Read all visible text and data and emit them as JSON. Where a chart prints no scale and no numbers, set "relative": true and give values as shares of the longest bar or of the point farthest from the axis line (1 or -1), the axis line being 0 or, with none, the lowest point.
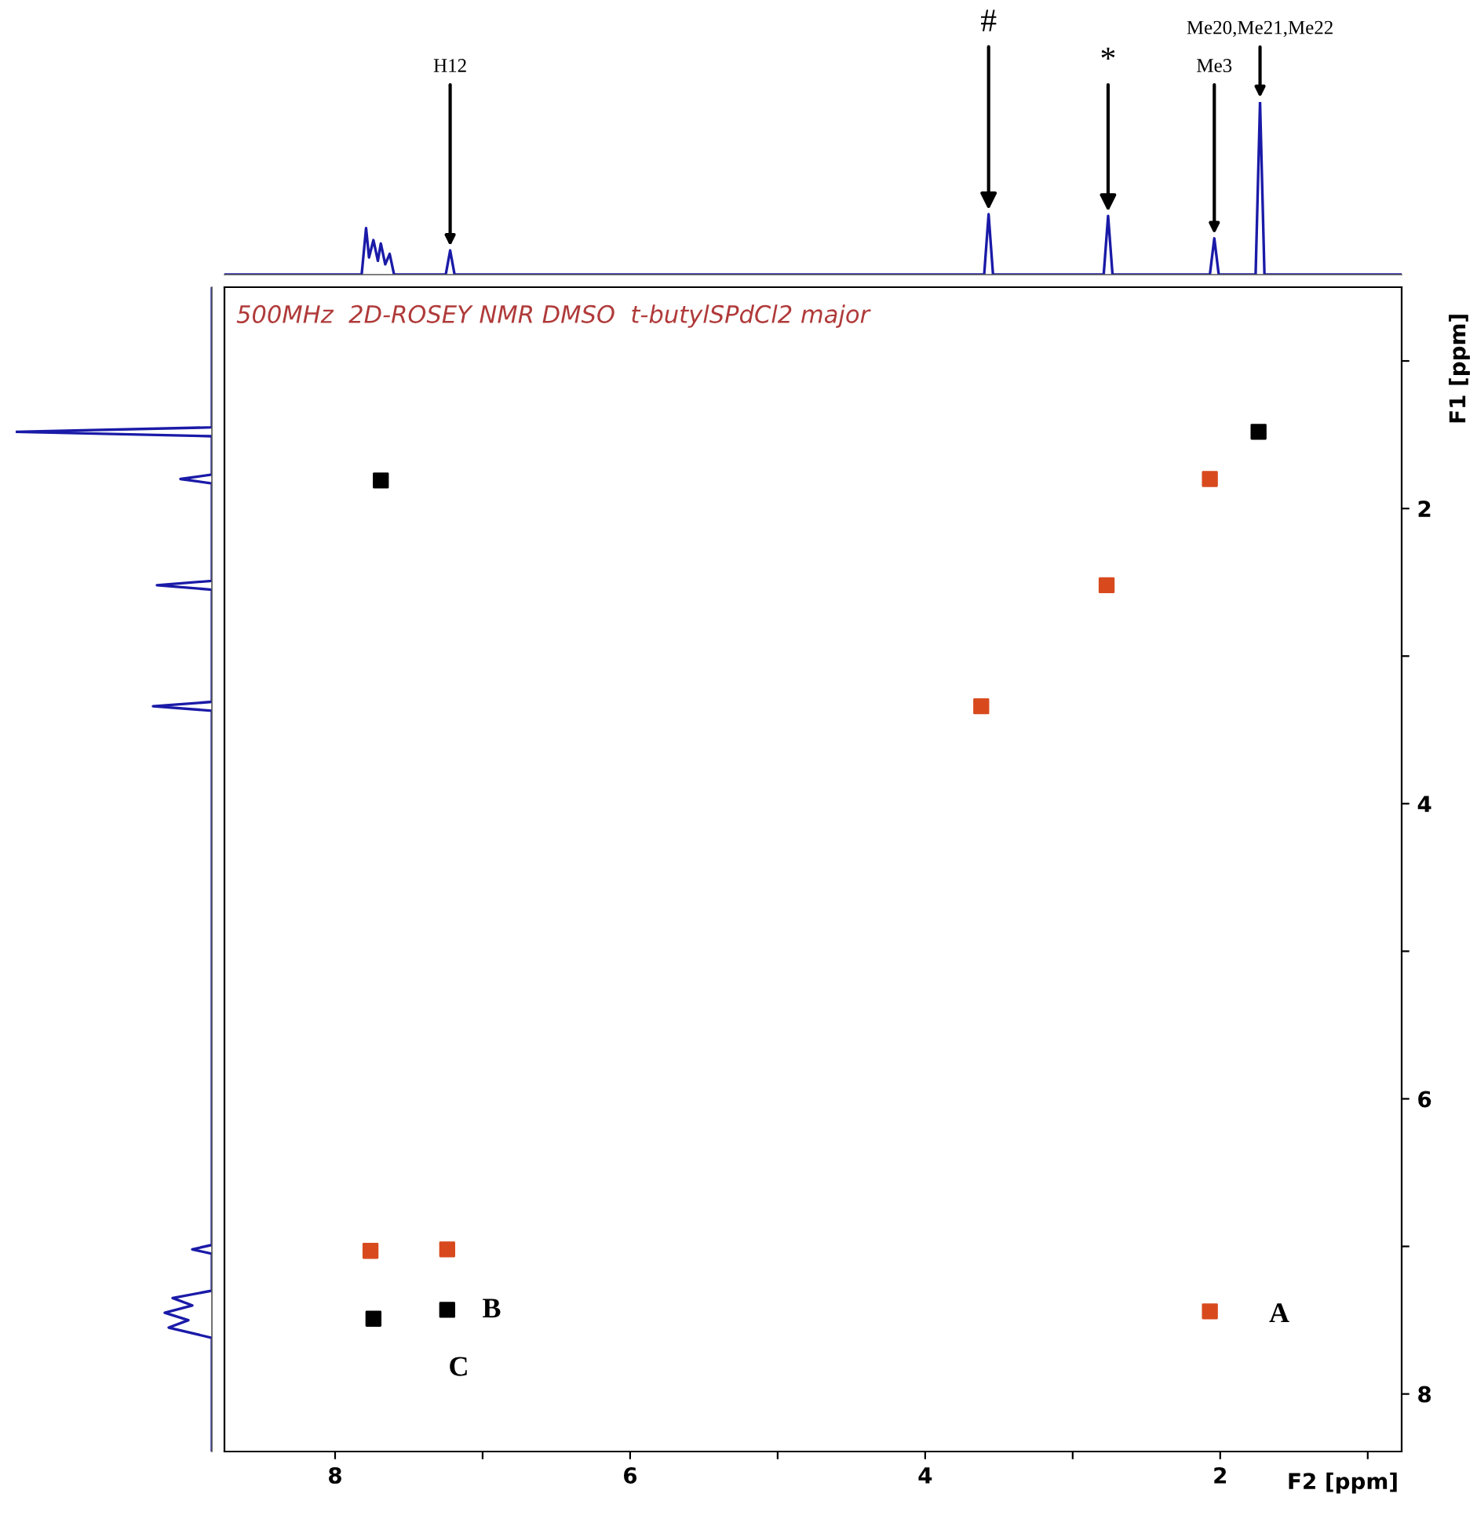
{
  "chart_data": [
    {
      "type": "line",
      "relative": true,
      "color": "#1a1aa8",
      "xlim": [
        8.75,
        0.77
      ],
      "tick_labels": false,
      "x": [
        8.75,
        7.82,
        7.79,
        7.77,
        7.74,
        7.71,
        7.69,
        7.66,
        7.63,
        7.6,
        7.25,
        7.22,
        7.19,
        3.6,
        3.57,
        3.54,
        2.79,
        2.76,
        2.73,
        2.07,
        2.04,
        2.01,
        1.76,
        1.73,
        1.7,
        0.77
      ],
      "values": [
        0,
        0,
        0.27,
        0.1,
        0.2,
        0.08,
        0.18,
        0.06,
        0.12,
        0,
        0,
        0.14,
        0,
        0,
        0.35,
        0,
        0,
        0.34,
        0,
        0,
        0.21,
        0,
        0,
        1,
        0,
        0
      ],
      "annotations": [
        {
          "text": "H12",
          "x": 7.22,
          "y": 0.14
        },
        {
          "text": "#",
          "x": 3.57,
          "y": 0.35
        },
        {
          "text": "*",
          "x": 2.76,
          "y": 0.34
        },
        {
          "text": "Me20,Me21,Me22",
          "x": 1.73,
          "y": 1.0
        },
        {
          "text": "Me3",
          "x": 2.04,
          "y": 0.21
        }
      ]
    },
    {
      "type": "line",
      "orientation": "horizontal",
      "relative": true,
      "color": "#1a1aa8",
      "ylim": [
        8.39,
        0.5
      ],
      "tick_labels": false,
      "x": [
        0.5,
        1.45,
        1.48,
        1.51,
        1.77,
        1.8,
        1.83,
        2.49,
        2.52,
        2.55,
        3.31,
        3.34,
        3.37,
        6.99,
        7.02,
        7.05,
        7.3,
        7.35,
        7.4,
        7.45,
        7.5,
        7.55,
        7.62,
        8.39
      ],
      "values": [
        0,
        0,
        -1,
        0,
        0,
        -0.16,
        0,
        0,
        -0.28,
        0,
        0,
        -0.3,
        0,
        0,
        -0.1,
        0,
        0,
        -0.2,
        -0.1,
        -0.24,
        -0.12,
        -0.22,
        0,
        0
      ]
    },
    {
      "type": "scatter",
      "title": "500MHz  2D-ROSEY NMR DMSO  t-butylSPdCl2 major",
      "xlabel": "F2 [ppm]",
      "ylabel": "F1 [ppm]",
      "marker": "square",
      "grid": false,
      "xlim": [
        8.75,
        0.77
      ],
      "ylim": [
        8.39,
        0.5
      ],
      "xticks": [
        8,
        {
          "value": 7,
          "label": null
        },
        6,
        {
          "value": 5,
          "label": null
        },
        4,
        {
          "value": 3,
          "label": null
        },
        2,
        {
          "value": 1,
          "label": null
        }
      ],
      "yticks": [
        {
          "value": 1,
          "label": null
        },
        2,
        {
          "value": 3,
          "label": null
        },
        4,
        {
          "value": 5,
          "label": null
        },
        6,
        {
          "value": 7,
          "label": null
        },
        8
      ],
      "x": [
        1.74,
        2.07,
        2.77,
        3.62,
        7.69,
        7.24,
        7.76,
        7.74,
        7.24,
        2.07
      ],
      "values": [
        1.48,
        1.8,
        2.52,
        3.34,
        1.81,
        7.02,
        7.03,
        7.49,
        7.43,
        7.44
      ],
      "colors": [
        "#000000",
        "#d84a1e",
        "#d84a1e",
        "#d84a1e",
        "#000000",
        "#d84a1e",
        "#d84a1e",
        "#000000",
        "#000000",
        "#d84a1e"
      ],
      "annotations": [
        "A",
        "B",
        "C"
      ]
    }
  ]
}
